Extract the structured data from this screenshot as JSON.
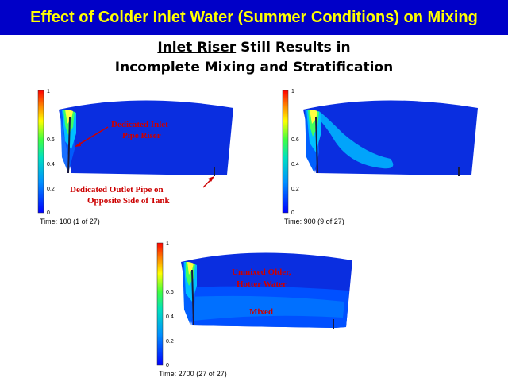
{
  "slide": {
    "title": "Effect of Colder Inlet Water (Summer Conditions) on Mixing",
    "subtitle_underlined": "Inlet Riser",
    "subtitle_line1_rest": " Still Results in",
    "subtitle_line2": "Incomplete Mixing and Stratification"
  },
  "colors": {
    "title_bar": "#0000c8",
    "title_text": "#ffff00",
    "annotation": "#cc0000",
    "tank_fill": "#0a2ee0"
  },
  "color_scale": {
    "ticks": [
      "1",
      "0.6",
      "0.4",
      "0.2",
      "0"
    ],
    "tick_values": [
      1,
      0.6,
      0.4,
      0.2,
      0
    ]
  },
  "panels": [
    {
      "time_label": "Time: 100 (1 of 27)",
      "annotations": [
        "Dedicated Inlet",
        "Pipe Riser",
        "Dedicated Outlet Pipe on",
        "Opposite Side of Tank"
      ]
    },
    {
      "time_label": "Time: 900 (9 of 27)",
      "annotations": []
    },
    {
      "time_label": "Time: 2700 (27 of 27)",
      "annotations": [
        "Unmixed Older,",
        "Hotter Water",
        "Mixed"
      ]
    }
  ]
}
